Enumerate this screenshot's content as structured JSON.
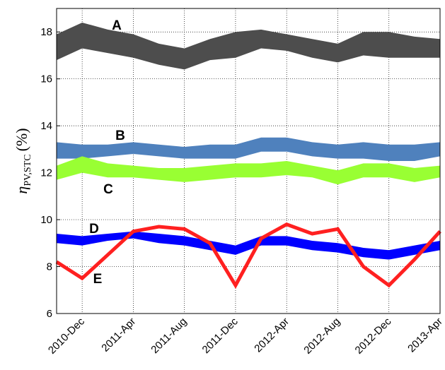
{
  "chart_data": {
    "type": "band",
    "y_label": {
      "symbol": "η",
      "subscript": "PV,STC",
      "unit": "(%)"
    },
    "categories": [
      null,
      "2010-Dec",
      null,
      "2011-Apr",
      null,
      "2011-Aug",
      null,
      "2011-Dec",
      null,
      "2012-Apr",
      null,
      "2012-Aug",
      null,
      "2012-Dec",
      null,
      "2013-Apr"
    ],
    "ylim": [
      6,
      19
    ],
    "yticks": [
      6,
      8,
      10,
      12,
      14,
      16,
      18
    ],
    "grid": true,
    "series": [
      {
        "name": "A",
        "kind": "band",
        "color": "#4d4d4d",
        "high": [
          17.9,
          18.4,
          18.1,
          17.9,
          17.5,
          17.3,
          17.7,
          18.0,
          18.1,
          17.9,
          17.7,
          17.5,
          18.0,
          18.0,
          17.8,
          17.7
        ],
        "low": [
          16.8,
          17.3,
          17.1,
          16.9,
          16.6,
          16.4,
          16.8,
          16.9,
          17.3,
          17.2,
          16.9,
          16.7,
          17.0,
          16.9,
          16.9,
          16.9
        ]
      },
      {
        "name": "B",
        "kind": "band",
        "color": "#4f81bd",
        "high": [
          13.3,
          13.2,
          13.2,
          13.3,
          13.2,
          13.1,
          13.2,
          13.2,
          13.5,
          13.5,
          13.3,
          13.2,
          13.3,
          13.2,
          13.2,
          13.3
        ],
        "low": [
          12.6,
          12.6,
          12.7,
          12.8,
          12.7,
          12.6,
          12.6,
          12.6,
          12.9,
          12.9,
          12.7,
          12.6,
          12.6,
          12.5,
          12.5,
          12.7
        ]
      },
      {
        "name": "C",
        "kind": "band",
        "color": "#99ff33",
        "high": [
          12.3,
          12.7,
          12.4,
          12.3,
          12.2,
          12.2,
          12.3,
          12.4,
          12.4,
          12.5,
          12.3,
          12.1,
          12.4,
          12.4,
          12.2,
          12.3
        ],
        "low": [
          11.7,
          12.0,
          11.8,
          11.8,
          11.7,
          11.6,
          11.7,
          11.8,
          11.8,
          11.9,
          11.8,
          11.5,
          11.8,
          11.8,
          11.6,
          11.8
        ]
      },
      {
        "name": "D",
        "kind": "band",
        "color": "#0000ff",
        "high": [
          9.4,
          9.3,
          9.4,
          9.5,
          9.4,
          9.3,
          9.1,
          8.9,
          9.3,
          9.3,
          9.1,
          9.0,
          8.8,
          8.7,
          8.9,
          9.1
        ],
        "low": [
          9.0,
          8.9,
          9.1,
          9.2,
          9.0,
          8.9,
          8.7,
          8.5,
          8.9,
          8.9,
          8.7,
          8.6,
          8.4,
          8.3,
          8.5,
          8.7
        ]
      },
      {
        "name": "E",
        "kind": "line",
        "color": "#ff2020",
        "values": [
          8.2,
          7.5,
          8.5,
          9.5,
          9.7,
          9.6,
          9.0,
          7.2,
          9.2,
          9.8,
          9.4,
          9.6,
          8.0,
          7.2,
          8.3,
          9.5
        ]
      }
    ]
  }
}
